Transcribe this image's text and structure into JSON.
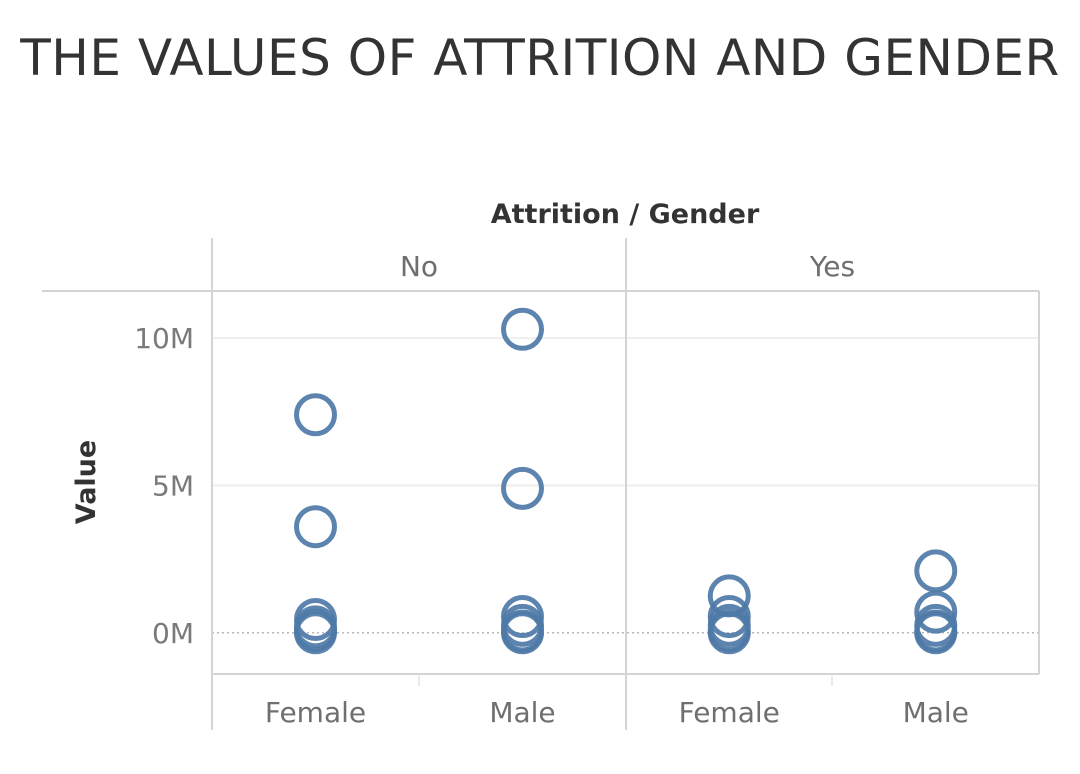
{
  "chart_data": {
    "type": "scatter",
    "title": "THE VALUES OF ATTRITION AND GENDER",
    "column_header": "Attrition / Gender",
    "ylabel": "Value",
    "ylim": [
      -1400000,
      11600000
    ],
    "yticks": [
      {
        "value": 0,
        "label": "0M"
      },
      {
        "value": 5000000,
        "label": "5M"
      },
      {
        "value": 10000000,
        "label": "10M"
      }
    ],
    "groups": [
      {
        "label": "No",
        "categories": [
          "Female",
          "Male"
        ]
      },
      {
        "label": "Yes",
        "categories": [
          "Female",
          "Male"
        ]
      }
    ],
    "series": [
      {
        "attrition": "No",
        "gender": "Female",
        "values": [
          7400000,
          3600000,
          450000,
          200000,
          80000,
          0
        ]
      },
      {
        "attrition": "No",
        "gender": "Male",
        "values": [
          10300000,
          4900000,
          550000,
          250000,
          60000,
          0
        ]
      },
      {
        "attrition": "Yes",
        "gender": "Female",
        "values": [
          1250000,
          550000,
          250000,
          80000,
          0
        ]
      },
      {
        "attrition": "Yes",
        "gender": "Male",
        "values": [
          2100000,
          700000,
          250000,
          60000,
          0
        ]
      }
    ],
    "marker": "open-circle",
    "marker_color": "#4e79a7",
    "grid": true
  }
}
